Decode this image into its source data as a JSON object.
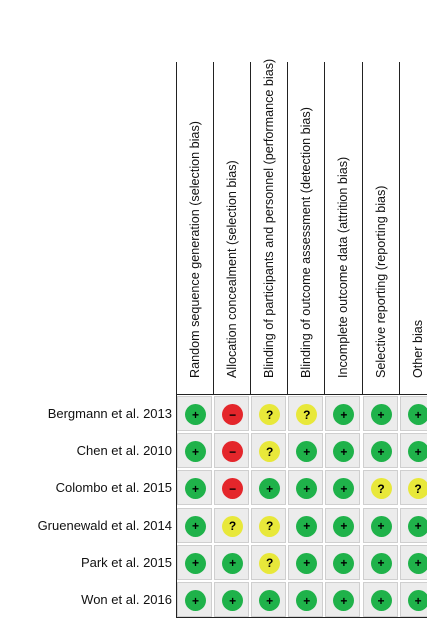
{
  "columns": [
    "Random sequence generation (selection bias)",
    "Allocation concealment (selection bias)",
    "Blinding of participants and personnel (performance bias)",
    "Blinding of outcome assessment (detection bias)",
    "Incomplete outcome data (attrition bias)",
    "Selective reporting (reporting bias)",
    "Other bias"
  ],
  "symbols": {
    "low": "+",
    "unclear": "?",
    "high": "−"
  },
  "colors": {
    "low": "#1fb24a",
    "unclear": "#e8e83a",
    "high": "#e4262b",
    "cell": "#ececec"
  },
  "rows": [
    {
      "study": "Bergmann et al. 2013",
      "ratings": [
        "low",
        "high",
        "unclear",
        "unclear",
        "low",
        "low",
        "low"
      ]
    },
    {
      "study": "Chen et al. 2010",
      "ratings": [
        "low",
        "high",
        "unclear",
        "low",
        "low",
        "low",
        "low"
      ]
    },
    {
      "study": "Colombo et al. 2015",
      "ratings": [
        "low",
        "high",
        "low",
        "low",
        "low",
        "unclear",
        "unclear"
      ]
    },
    {
      "study": "Gruenewald et al. 2014",
      "ratings": [
        "low",
        "unclear",
        "unclear",
        "low",
        "low",
        "low",
        "low"
      ]
    },
    {
      "study": "Park et al. 2015",
      "ratings": [
        "low",
        "low",
        "unclear",
        "low",
        "low",
        "low",
        "low"
      ]
    },
    {
      "study": "Won et al. 2016",
      "ratings": [
        "low",
        "low",
        "low",
        "low",
        "low",
        "low",
        "low"
      ]
    }
  ]
}
